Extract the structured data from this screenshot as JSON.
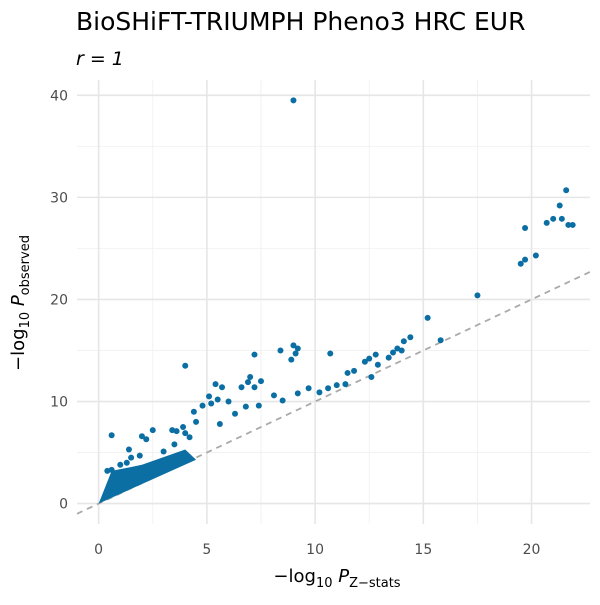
{
  "chart_data": {
    "type": "scatter",
    "title": "BioSHiFT-TRIUMPH Pheno3 HRC EUR",
    "subtitle": "r = 1",
    "xlabel": "-log10 P Z-stats",
    "ylabel": "-log10 P observed",
    "xlim": [
      -1.0,
      22.7
    ],
    "ylim": [
      -2.0,
      41.5
    ],
    "x_ticks": [
      0,
      5,
      10,
      15,
      20
    ],
    "y_ticks": [
      0,
      10,
      20,
      30,
      40
    ],
    "grid": true,
    "reference_line": {
      "slope": 1.0,
      "intercept": 0,
      "style": "dashed",
      "color": "#aaaaaa"
    },
    "point_color": "#0b6fa4",
    "series": [
      {
        "points": [
          [
            9.0,
            39.5
          ],
          [
            21.6,
            30.7
          ],
          [
            21.3,
            29.2
          ],
          [
            20.7,
            27.5
          ],
          [
            21.0,
            27.9
          ],
          [
            21.4,
            27.9
          ],
          [
            21.7,
            27.3
          ],
          [
            21.9,
            27.3
          ],
          [
            19.7,
            27.0
          ],
          [
            20.2,
            24.3
          ],
          [
            19.7,
            23.9
          ],
          [
            19.5,
            23.5
          ],
          [
            17.5,
            20.4
          ],
          [
            15.2,
            18.2
          ],
          [
            14.4,
            16.3
          ],
          [
            14.1,
            15.9
          ],
          [
            15.8,
            16.0
          ],
          [
            13.8,
            15.2
          ],
          [
            14.0,
            15.0
          ],
          [
            13.6,
            14.8
          ],
          [
            13.4,
            14.3
          ],
          [
            12.8,
            14.6
          ],
          [
            12.5,
            14.2
          ],
          [
            12.3,
            13.9
          ],
          [
            12.9,
            13.6
          ],
          [
            11.8,
            13.0
          ],
          [
            12.6,
            12.4
          ],
          [
            11.5,
            12.8
          ],
          [
            10.7,
            14.7
          ],
          [
            9.0,
            15.5
          ],
          [
            9.2,
            15.2
          ],
          [
            9.1,
            14.7
          ],
          [
            8.4,
            15.0
          ],
          [
            7.2,
            14.6
          ],
          [
            8.9,
            14.1
          ],
          [
            4.0,
            13.5
          ],
          [
            7.5,
            12.0
          ],
          [
            7.2,
            11.4
          ],
          [
            6.6,
            11.4
          ],
          [
            6.9,
            11.9
          ],
          [
            7.0,
            12.4
          ],
          [
            5.4,
            11.7
          ],
          [
            5.7,
            11.4
          ],
          [
            5.1,
            10.5
          ],
          [
            5.5,
            10.2
          ],
          [
            6.0,
            10.0
          ],
          [
            5.2,
            9.8
          ],
          [
            4.8,
            9.6
          ],
          [
            4.4,
            9.0
          ],
          [
            4.5,
            8.0
          ],
          [
            3.9,
            7.5
          ],
          [
            3.6,
            7.1
          ],
          [
            4.0,
            6.9
          ],
          [
            3.4,
            7.2
          ],
          [
            2.5,
            7.2
          ],
          [
            2.0,
            6.6
          ],
          [
            0.6,
            6.7
          ],
          [
            2.2,
            6.3
          ],
          [
            1.4,
            5.3
          ],
          [
            1.9,
            4.7
          ],
          [
            1.5,
            4.5
          ],
          [
            1.3,
            4.0
          ],
          [
            1.0,
            3.8
          ],
          [
            0.6,
            3.3
          ],
          [
            0.4,
            3.2
          ],
          [
            3.0,
            5.1
          ],
          [
            3.5,
            5.8
          ],
          [
            4.2,
            6.5
          ],
          [
            5.6,
            7.8
          ],
          [
            6.3,
            8.8
          ],
          [
            7.4,
            9.6
          ],
          [
            8.5,
            10.1
          ],
          [
            9.2,
            10.8
          ],
          [
            10.2,
            10.9
          ],
          [
            10.6,
            11.3
          ],
          [
            11.0,
            11.6
          ],
          [
            11.4,
            11.7
          ],
          [
            9.7,
            11.3
          ],
          [
            8.1,
            10.6
          ],
          [
            6.8,
            9.5
          ]
        ]
      }
    ]
  }
}
